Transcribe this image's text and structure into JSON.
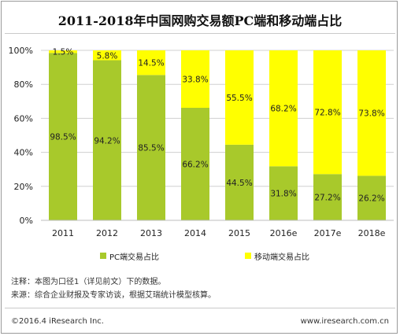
{
  "title": "2011-2018年中国网购交易额PC端和移动端占比",
  "notes": {
    "note1": "注释：本图为口径1（详见前文）下的数据。",
    "note2": "来源：综合企业财报及专家访谈，根据艾瑞统计模型核算。"
  },
  "footer": {
    "copyright": "©2016.4 iResearch Inc.",
    "website": "www.iresearch.com.cn"
  },
  "colors": {
    "pc": "#a8c92b",
    "mobile": "#ffff00",
    "grid": "#d0d0d0"
  },
  "chart_data": {
    "type": "bar",
    "stacked": true,
    "categories": [
      "2011",
      "2012",
      "2013",
      "2014",
      "2015",
      "2016e",
      "2017e",
      "2018e"
    ],
    "series": [
      {
        "name": "PC端交易占比",
        "values": [
          98.5,
          94.2,
          85.5,
          66.2,
          44.5,
          31.8,
          27.2,
          26.2
        ],
        "labels": [
          "98.5%",
          "94.2%",
          "85.5%",
          "66.2%",
          "44.5%",
          "31.8%",
          "27.2%",
          "26.2%"
        ]
      },
      {
        "name": "移动端交易占比",
        "values": [
          1.5,
          5.8,
          14.5,
          33.8,
          55.5,
          68.2,
          72.8,
          73.8
        ],
        "labels": [
          "1.5%",
          "5.8%",
          "14.5%",
          "33.8%",
          "55.5%",
          "68.2%",
          "72.8%",
          "73.8%"
        ]
      }
    ],
    "ylim": [
      0,
      100
    ],
    "yticks": [
      "0%",
      "20%",
      "40%",
      "60%",
      "80%",
      "100%"
    ],
    "grid": true,
    "legend_position": "bottom"
  }
}
